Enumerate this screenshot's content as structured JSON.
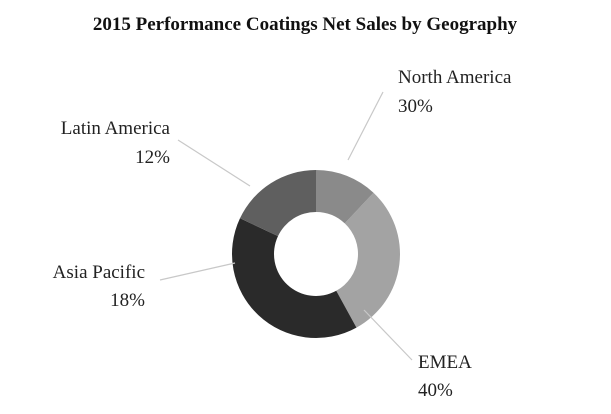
{
  "chart_data": {
    "type": "pie",
    "donut": true,
    "title": "2015 Performance Coatings Net Sales by Geography",
    "slices": [
      {
        "label": "North America",
        "percent_label": "30%",
        "value": 30,
        "color": "#a3a3a3"
      },
      {
        "label": "EMEA",
        "percent_label": "40%",
        "value": 40,
        "color": "#2a2a2a"
      },
      {
        "label": "Asia Pacific",
        "percent_label": "18%",
        "value": 18,
        "color": "#5f5f5f"
      },
      {
        "label": "Latin America",
        "percent_label": "12%",
        "value": 12,
        "color": "#8a8a8a"
      }
    ],
    "legend": "none",
    "grid": false
  }
}
